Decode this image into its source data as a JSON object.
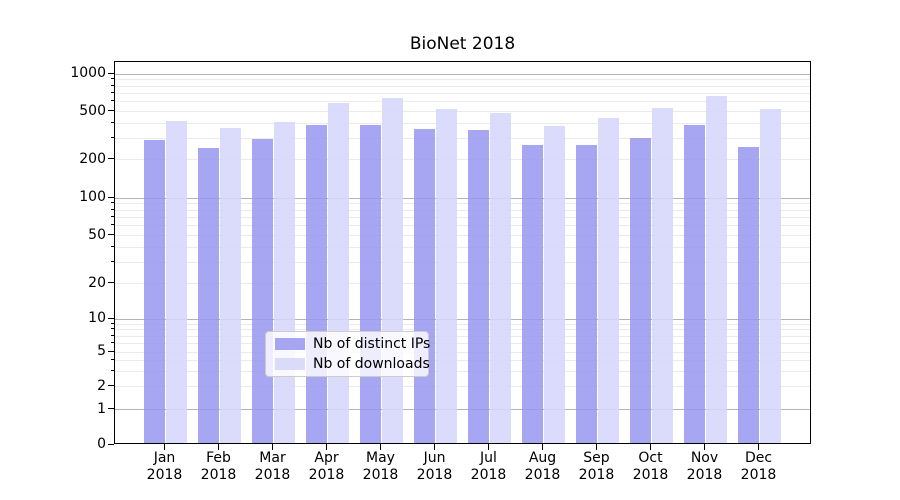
{
  "title": "BioNet 2018",
  "legend": {
    "items": [
      {
        "label": "Nb of distinct IPs",
        "color": "#a5a5f2"
      },
      {
        "label": "Nb of downloads",
        "color": "#dadaf9"
      }
    ]
  },
  "colors": {
    "bar_dark": "rgba(150,150,240,0.85)",
    "bar_light": "rgba(214,214,250,0.88)",
    "grid_decade": "#b4b4b4",
    "grid_minor": "#ebebeb",
    "axis": "#000000",
    "background": "#ffffff"
  },
  "chart_data": {
    "type": "bar",
    "title": "BioNet 2018",
    "categories": [
      "Jan 2018",
      "Feb 2018",
      "Mar 2018",
      "Apr 2018",
      "May 2018",
      "Jun 2018",
      "Jul 2018",
      "Aug 2018",
      "Sep 2018",
      "Oct 2018",
      "Nov 2018",
      "Dec 2018"
    ],
    "series": [
      {
        "name": "Nb of distinct IPs",
        "values": [
          280,
          240,
          285,
          375,
          370,
          345,
          340,
          255,
          255,
          290,
          375,
          245
        ]
      },
      {
        "name": "Nb of downloads",
        "values": [
          400,
          350,
          395,
          570,
          620,
          505,
          470,
          365,
          430,
          515,
          650,
          505
        ]
      }
    ],
    "xlabel": "",
    "ylabel": "",
    "yscale": "symlog",
    "ylim": [
      0,
      1000
    ],
    "yticks": [
      0,
      1,
      2,
      5,
      10,
      20,
      50,
      100,
      200,
      500,
      1000
    ],
    "yticks_minor": [
      3,
      4,
      6,
      7,
      8,
      9,
      30,
      40,
      60,
      70,
      80,
      90,
      300,
      400,
      600,
      700,
      800,
      900
    ],
    "grid": "both",
    "legend_position": "lower-center"
  }
}
